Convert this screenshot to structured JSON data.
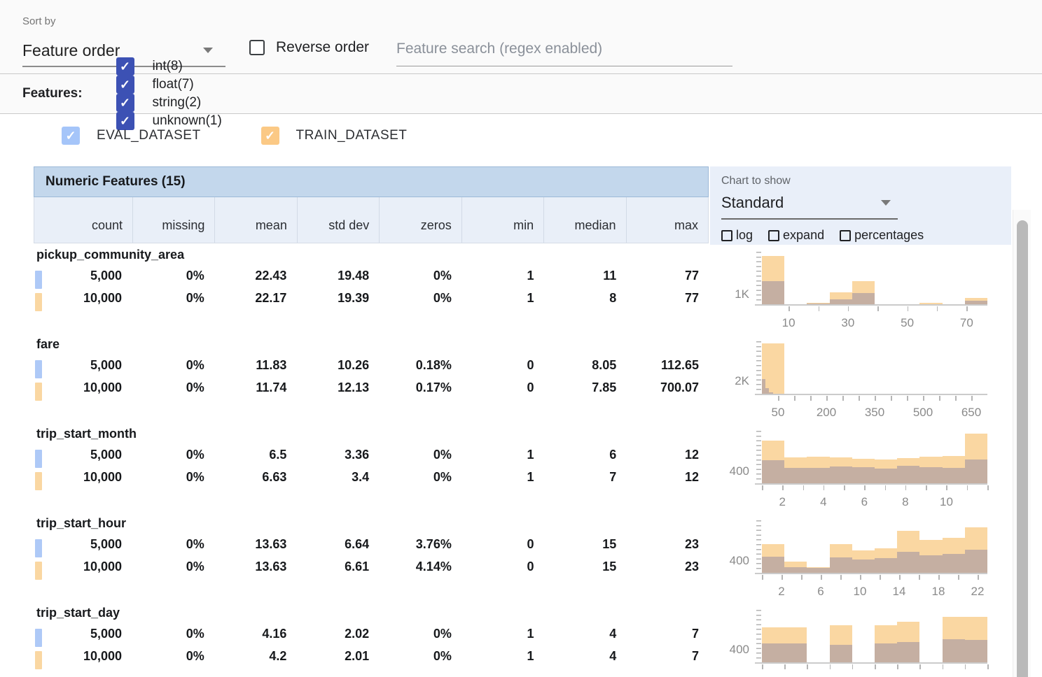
{
  "toolbar": {
    "sort_by_label": "Sort by",
    "sort_value": "Feature order",
    "reverse_label": "Reverse order",
    "search_placeholder": "Feature search (regex enabled)"
  },
  "features_bar": {
    "label": "Features:",
    "checkbox_color": "#3c51b4",
    "filters": [
      {
        "label": "int(8)",
        "checked": true
      },
      {
        "label": "float(7)",
        "checked": true
      },
      {
        "label": "string(2)",
        "checked": true
      },
      {
        "label": "unknown(1)",
        "checked": true
      }
    ]
  },
  "datasets": [
    {
      "label": "EVAL_DATASET",
      "checked": true,
      "checkbox_color": "#a5c5f9",
      "marker_color": "#aec9f7"
    },
    {
      "label": "TRAIN_DATASET",
      "checked": true,
      "checkbox_color": "#fbc985",
      "marker_color": "#fad7a2"
    }
  ],
  "table": {
    "title": "Numeric Features (15)",
    "columns": [
      "count",
      "missing",
      "mean",
      "std dev",
      "zeros",
      "min",
      "median",
      "max"
    ],
    "features": [
      {
        "name": "pickup_community_area",
        "rows": [
          {
            "dataset": "EVAL_DATASET",
            "values": [
              "5,000",
              "0%",
              "22.43",
              "19.48",
              "0%",
              "1",
              "11",
              "77"
            ]
          },
          {
            "dataset": "TRAIN_DATASET",
            "values": [
              "10,000",
              "0%",
              "22.17",
              "19.39",
              "0%",
              "1",
              "8",
              "77"
            ]
          }
        ]
      },
      {
        "name": "fare",
        "rows": [
          {
            "dataset": "EVAL_DATASET",
            "values": [
              "5,000",
              "0%",
              "11.83",
              "10.26",
              "0.18%",
              "0",
              "8.05",
              "112.65"
            ]
          },
          {
            "dataset": "TRAIN_DATASET",
            "values": [
              "10,000",
              "0%",
              "11.74",
              "12.13",
              "0.17%",
              "0",
              "7.85",
              "700.07"
            ]
          }
        ]
      },
      {
        "name": "trip_start_month",
        "rows": [
          {
            "dataset": "EVAL_DATASET",
            "values": [
              "5,000",
              "0%",
              "6.5",
              "3.36",
              "0%",
              "1",
              "6",
              "12"
            ]
          },
          {
            "dataset": "TRAIN_DATASET",
            "values": [
              "10,000",
              "0%",
              "6.63",
              "3.4",
              "0%",
              "1",
              "7",
              "12"
            ]
          }
        ]
      },
      {
        "name": "trip_start_hour",
        "rows": [
          {
            "dataset": "EVAL_DATASET",
            "values": [
              "5,000",
              "0%",
              "13.63",
              "6.64",
              "3.76%",
              "0",
              "15",
              "23"
            ]
          },
          {
            "dataset": "TRAIN_DATASET",
            "values": [
              "10,000",
              "0%",
              "13.63",
              "6.61",
              "4.14%",
              "0",
              "15",
              "23"
            ]
          }
        ]
      },
      {
        "name": "trip_start_day",
        "rows": [
          {
            "dataset": "EVAL_DATASET",
            "values": [
              "5,000",
              "0%",
              "4.16",
              "2.02",
              "0%",
              "1",
              "4",
              "7"
            ]
          },
          {
            "dataset": "TRAIN_DATASET",
            "values": [
              "10,000",
              "0%",
              "4.2",
              "2.01",
              "0%",
              "1",
              "4",
              "7"
            ]
          }
        ]
      }
    ]
  },
  "chart_panel": {
    "label": "Chart to show",
    "selected": "Standard",
    "options": [
      "log",
      "expand",
      "percentages"
    ]
  },
  "chart_colors": {
    "train": "#fad7a2",
    "eval_overlay": "rgba(133,127,162,0.45)"
  },
  "chart_data": [
    {
      "feature": "pickup_community_area",
      "type": "histogram",
      "x_range": [
        1,
        77
      ],
      "ymax": 5200,
      "y_axis_label": {
        "text": "1K",
        "value": 1000
      },
      "x_ticks": [
        {
          "v": 10,
          "label": "10"
        },
        {
          "v": 20
        },
        {
          "v": 30,
          "label": "30"
        },
        {
          "v": 40
        },
        {
          "v": 50,
          "label": "50"
        },
        {
          "v": 60
        },
        {
          "v": 70,
          "label": "70"
        }
      ],
      "series": [
        {
          "name": "TRAIN_DATASET",
          "color": "#fad7a2",
          "bars": [
            {
              "x0": 1,
              "x1": 8.6,
              "y": 4800
            },
            {
              "x0": 8.6,
              "x1": 16.2,
              "y": 50
            },
            {
              "x0": 16.2,
              "x1": 23.8,
              "y": 200
            },
            {
              "x0": 23.8,
              "x1": 31.4,
              "y": 1200
            },
            {
              "x0": 31.4,
              "x1": 39,
              "y": 2350
            },
            {
              "x0": 39,
              "x1": 46.6,
              "y": 30
            },
            {
              "x0": 46.6,
              "x1": 54.2,
              "y": 30
            },
            {
              "x0": 54.2,
              "x1": 61.8,
              "y": 200
            },
            {
              "x0": 61.8,
              "x1": 69.4,
              "y": 30
            },
            {
              "x0": 69.4,
              "x1": 77,
              "y": 700
            }
          ]
        },
        {
          "name": "EVAL_DATASET",
          "color": "rgba(133,127,162,0.45)",
          "bars": [
            {
              "x0": 1,
              "x1": 8.6,
              "y": 2350
            },
            {
              "x0": 8.6,
              "x1": 16.2,
              "y": 30
            },
            {
              "x0": 16.2,
              "x1": 23.8,
              "y": 150
            },
            {
              "x0": 23.8,
              "x1": 31.4,
              "y": 570
            },
            {
              "x0": 31.4,
              "x1": 39,
              "y": 1150
            },
            {
              "x0": 39,
              "x1": 46.6,
              "y": 20
            },
            {
              "x0": 46.6,
              "x1": 54.2,
              "y": 20
            },
            {
              "x0": 54.2,
              "x1": 61.8,
              "y": 70
            },
            {
              "x0": 61.8,
              "x1": 69.4,
              "y": 20
            },
            {
              "x0": 69.4,
              "x1": 77,
              "y": 430
            }
          ]
        }
      ]
    },
    {
      "feature": "fare",
      "type": "histogram",
      "x_range": [
        0,
        700
      ],
      "ymax": 8000,
      "y_axis_label": {
        "text": "2K",
        "value": 2000
      },
      "x_ticks": [
        {
          "v": 50,
          "label": "50"
        },
        {
          "v": 100
        },
        {
          "v": 150
        },
        {
          "v": 200,
          "label": "200"
        },
        {
          "v": 250
        },
        {
          "v": 300
        },
        {
          "v": 350,
          "label": "350"
        },
        {
          "v": 400
        },
        {
          "v": 450
        },
        {
          "v": 500,
          "label": "500"
        },
        {
          "v": 550
        },
        {
          "v": 600
        },
        {
          "v": 650,
          "label": "650"
        }
      ],
      "series": [
        {
          "name": "TRAIN_DATASET",
          "color": "#fad7a2",
          "bars": [
            {
              "x0": 0,
              "x1": 70,
              "y": 7700
            }
          ]
        },
        {
          "name": "EVAL_DATASET",
          "color": "rgba(133,127,162,0.45)",
          "bars": [
            {
              "x0": 0,
              "x1": 11.3,
              "y": 2300
            },
            {
              "x0": 11.3,
              "x1": 22.5,
              "y": 900
            },
            {
              "x0": 22.5,
              "x1": 33.8,
              "y": 300
            },
            {
              "x0": 33.8,
              "x1": 45.1,
              "y": 120
            },
            {
              "x0": 45.1,
              "x1": 56.3,
              "y": 50
            }
          ]
        }
      ]
    },
    {
      "feature": "trip_start_month",
      "type": "histogram",
      "x_range": [
        1,
        12
      ],
      "ymax": 1700,
      "y_axis_label": {
        "text": "400",
        "value": 400
      },
      "x_ticks": [
        {
          "v": 1
        },
        {
          "v": 2,
          "label": "2"
        },
        {
          "v": 3
        },
        {
          "v": 4,
          "label": "4"
        },
        {
          "v": 5
        },
        {
          "v": 6,
          "label": "6"
        },
        {
          "v": 7
        },
        {
          "v": 8,
          "label": "8"
        },
        {
          "v": 9
        },
        {
          "v": 10,
          "label": "10"
        },
        {
          "v": 11
        },
        {
          "v": 12
        }
      ],
      "series": [
        {
          "name": "TRAIN_DATASET",
          "color": "#fad7a2",
          "bars": [
            {
              "x0": 1,
              "x1": 2.1,
              "y": 1380
            },
            {
              "x0": 2.1,
              "x1": 3.2,
              "y": 840
            },
            {
              "x0": 3.2,
              "x1": 4.3,
              "y": 870
            },
            {
              "x0": 4.3,
              "x1": 5.4,
              "y": 860
            },
            {
              "x0": 5.4,
              "x1": 6.5,
              "y": 800
            },
            {
              "x0": 6.5,
              "x1": 7.6,
              "y": 780
            },
            {
              "x0": 7.6,
              "x1": 8.7,
              "y": 830
            },
            {
              "x0": 8.7,
              "x1": 9.8,
              "y": 870
            },
            {
              "x0": 9.8,
              "x1": 10.9,
              "y": 900
            },
            {
              "x0": 10.9,
              "x1": 12,
              "y": 1610
            }
          ]
        },
        {
          "name": "EVAL_DATASET",
          "color": "rgba(133,127,162,0.45)",
          "bars": [
            {
              "x0": 1,
              "x1": 2.1,
              "y": 755
            },
            {
              "x0": 2.1,
              "x1": 3.2,
              "y": 505
            },
            {
              "x0": 3.2,
              "x1": 4.3,
              "y": 515
            },
            {
              "x0": 4.3,
              "x1": 5.4,
              "y": 555
            },
            {
              "x0": 5.4,
              "x1": 6.5,
              "y": 530
            },
            {
              "x0": 6.5,
              "x1": 7.6,
              "y": 500
            },
            {
              "x0": 7.6,
              "x1": 8.7,
              "y": 590
            },
            {
              "x0": 8.7,
              "x1": 9.8,
              "y": 530
            },
            {
              "x0": 9.8,
              "x1": 10.9,
              "y": 515
            },
            {
              "x0": 10.9,
              "x1": 12,
              "y": 785
            }
          ]
        }
      ]
    },
    {
      "feature": "trip_start_hour",
      "type": "histogram",
      "x_range": [
        0,
        23
      ],
      "ymax": 1700,
      "y_axis_label": {
        "text": "400",
        "value": 400
      },
      "x_ticks": [
        {
          "v": 0
        },
        {
          "v": 2,
          "label": "2"
        },
        {
          "v": 4
        },
        {
          "v": 6,
          "label": "6"
        },
        {
          "v": 8
        },
        {
          "v": 10,
          "label": "10"
        },
        {
          "v": 12
        },
        {
          "v": 14,
          "label": "14"
        },
        {
          "v": 16
        },
        {
          "v": 18,
          "label": "18"
        },
        {
          "v": 20
        },
        {
          "v": 22,
          "label": "22"
        }
      ],
      "series": [
        {
          "name": "TRAIN_DATASET",
          "color": "#fad7a2",
          "bars": [
            {
              "x0": 0,
              "x1": 2.3,
              "y": 950
            },
            {
              "x0": 2.3,
              "x1": 4.6,
              "y": 380
            },
            {
              "x0": 4.6,
              "x1": 6.9,
              "y": 210
            },
            {
              "x0": 6.9,
              "x1": 9.2,
              "y": 930
            },
            {
              "x0": 9.2,
              "x1": 11.5,
              "y": 740
            },
            {
              "x0": 11.5,
              "x1": 13.8,
              "y": 800
            },
            {
              "x0": 13.8,
              "x1": 16.1,
              "y": 1370
            },
            {
              "x0": 16.1,
              "x1": 18.4,
              "y": 1080
            },
            {
              "x0": 18.4,
              "x1": 20.7,
              "y": 1150
            },
            {
              "x0": 20.7,
              "x1": 23,
              "y": 1470
            }
          ]
        },
        {
          "name": "EVAL_DATASET",
          "color": "rgba(133,127,162,0.45)",
          "bars": [
            {
              "x0": 0,
              "x1": 2.3,
              "y": 530
            },
            {
              "x0": 2.3,
              "x1": 4.6,
              "y": 210
            },
            {
              "x0": 4.6,
              "x1": 6.9,
              "y": 190
            },
            {
              "x0": 6.9,
              "x1": 9.2,
              "y": 505
            },
            {
              "x0": 9.2,
              "x1": 11.5,
              "y": 440
            },
            {
              "x0": 11.5,
              "x1": 13.8,
              "y": 490
            },
            {
              "x0": 13.8,
              "x1": 16.1,
              "y": 695
            },
            {
              "x0": 16.1,
              "x1": 18.4,
              "y": 580
            },
            {
              "x0": 18.4,
              "x1": 20.7,
              "y": 630
            },
            {
              "x0": 20.7,
              "x1": 23,
              "y": 770
            }
          ]
        }
      ]
    },
    {
      "feature": "trip_start_day",
      "type": "histogram",
      "x_range": [
        1,
        7
      ],
      "ymax": 1600,
      "y_axis_label": {
        "text": "400",
        "value": 400
      },
      "x_ticks": [
        {
          "v": 1
        },
        {
          "v": 1.6
        },
        {
          "v": 2.2
        },
        {
          "v": 2.8
        },
        {
          "v": 3.4
        },
        {
          "v": 4
        },
        {
          "v": 4.6
        },
        {
          "v": 5.2
        },
        {
          "v": 5.8
        },
        {
          "v": 6.4
        },
        {
          "v": 7
        }
      ],
      "series": [
        {
          "name": "TRAIN_DATASET",
          "color": "#fad7a2",
          "bars": [
            {
              "x0": 1,
              "x1": 1.6,
              "y": 1080
            },
            {
              "x0": 1.6,
              "x1": 2.2,
              "y": 1080
            },
            {
              "x0": 2.8,
              "x1": 3.4,
              "y": 1130
            },
            {
              "x0": 4,
              "x1": 4.6,
              "y": 1130
            },
            {
              "x0": 4.6,
              "x1": 5.2,
              "y": 1250
            },
            {
              "x0": 5.8,
              "x1": 6.4,
              "y": 1400
            },
            {
              "x0": 6.4,
              "x1": 7,
              "y": 1390
            }
          ]
        },
        {
          "name": "EVAL_DATASET",
          "color": "rgba(133,127,162,0.45)",
          "bars": [
            {
              "x0": 1,
              "x1": 1.6,
              "y": 600
            },
            {
              "x0": 1.6,
              "x1": 2.2,
              "y": 590
            },
            {
              "x0": 2.8,
              "x1": 3.4,
              "y": 550
            },
            {
              "x0": 4,
              "x1": 4.6,
              "y": 600
            },
            {
              "x0": 4.6,
              "x1": 5.2,
              "y": 640
            },
            {
              "x0": 5.8,
              "x1": 6.4,
              "y": 720
            },
            {
              "x0": 6.4,
              "x1": 7,
              "y": 700
            }
          ]
        }
      ]
    }
  ]
}
